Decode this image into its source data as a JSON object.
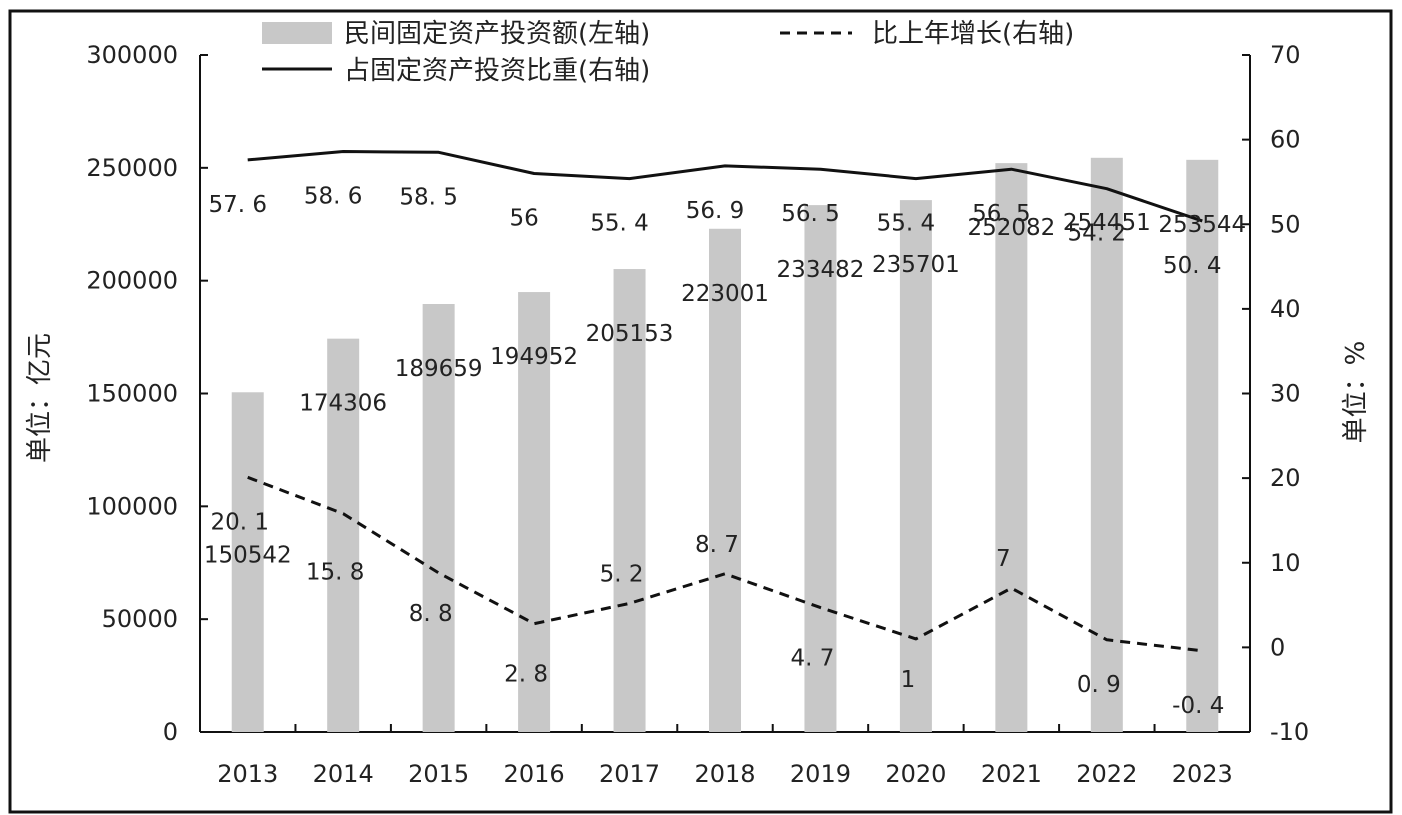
{
  "chart_data": {
    "type": "bar",
    "categories": [
      "2013",
      "2014",
      "2015",
      "2016",
      "2017",
      "2018",
      "2019",
      "2020",
      "2021",
      "2022",
      "2023"
    ],
    "series": [
      {
        "name": "民间固定资产投资额(左轴)",
        "kind": "bar",
        "axis": "left",
        "color": "#c8c8c8",
        "values": [
          150542,
          174306,
          189659,
          194952,
          205153,
          223001,
          233482,
          235701,
          252082,
          254451,
          253544
        ],
        "labels": [
          "150542",
          "174306",
          "189659",
          "194952",
          "205153",
          "223001",
          "233482",
          "235701",
          "252082",
          "254451",
          "253544"
        ]
      },
      {
        "name": "比上年增长(右轴)",
        "kind": "line",
        "axis": "right",
        "style": "dashed",
        "color": "#111111",
        "values": [
          20.1,
          15.8,
          8.8,
          2.8,
          5.2,
          8.7,
          4.7,
          1,
          7,
          0.9,
          -0.4
        ],
        "labels": [
          "20. 1",
          "15. 8",
          "8. 8",
          "2. 8",
          "5. 2",
          "8. 7",
          "4. 7",
          "1",
          "7",
          "0. 9",
          "-0. 4"
        ]
      },
      {
        "name": "占固定资产投资比重(右轴)",
        "kind": "line",
        "axis": "right",
        "style": "solid",
        "color": "#111111",
        "values": [
          57.6,
          58.6,
          58.5,
          56,
          55.4,
          56.9,
          56.5,
          55.4,
          56.5,
          54.2,
          50.4
        ],
        "labels": [
          "57. 6",
          "58. 6",
          "58. 5",
          "56",
          "55. 4",
          "56. 9",
          "56. 5",
          "55. 4",
          "56. 5",
          "54. 2",
          "50. 4"
        ]
      }
    ],
    "y_left": {
      "label": "单位：亿元",
      "ylim": [
        0,
        300000
      ],
      "ticks": [
        "0",
        "50000",
        "100000",
        "150000",
        "200000",
        "250000",
        "300000"
      ]
    },
    "y_right": {
      "label": "单位：%",
      "ylim": [
        -10,
        70
      ],
      "ticks": [
        "-10",
        "0",
        "10",
        "20",
        "30",
        "40",
        "50",
        "60",
        "70"
      ]
    },
    "grid": false,
    "legend_position": "top"
  }
}
